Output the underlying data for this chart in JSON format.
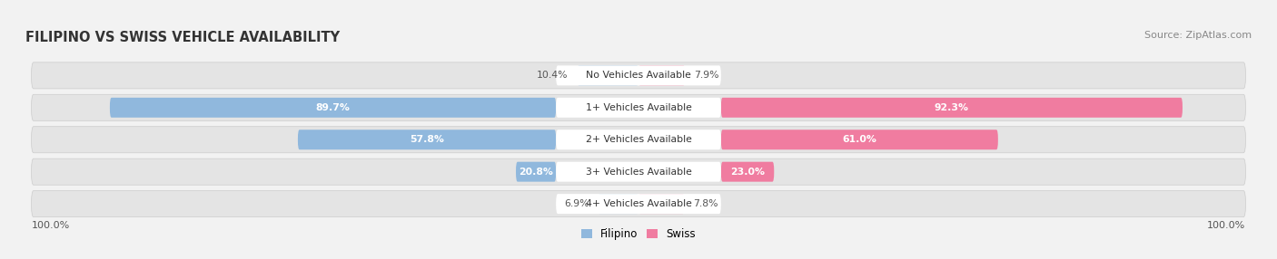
{
  "title": "FILIPINO VS SWISS VEHICLE AVAILABILITY",
  "source": "Source: ZipAtlas.com",
  "categories": [
    "No Vehicles Available",
    "1+ Vehicles Available",
    "2+ Vehicles Available",
    "3+ Vehicles Available",
    "4+ Vehicles Available"
  ],
  "filipino_values": [
    10.4,
    89.7,
    57.8,
    20.8,
    6.9
  ],
  "swiss_values": [
    7.9,
    92.3,
    61.0,
    23.0,
    7.8
  ],
  "filipino_color": "#90b8dd",
  "swiss_color": "#f07ca0",
  "bg_color": "#f2f2f2",
  "row_bg_color": "#e4e4e4",
  "label_box_color": "#ffffff",
  "value_inside_color": "#ffffff",
  "value_outside_color": "#555555",
  "title_color": "#333333",
  "source_color": "#888888",
  "legend_filipino_color": "#90b8dd",
  "legend_swiss_color": "#f07ca0",
  "bottom_label": "100.0%",
  "inside_threshold": 12.0
}
